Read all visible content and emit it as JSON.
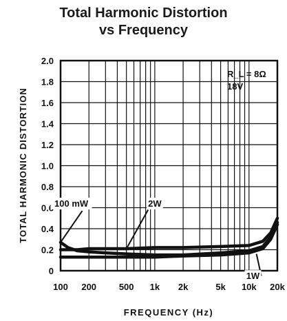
{
  "chart_data": {
    "type": "line",
    "title": [
      "Total Harmonic Distortion",
      "vs Frequency"
    ],
    "xlabel": "FREQUENCY (Hz)",
    "ylabel": "TOTAL HARMONIC DISTORTION",
    "x_scale": "log",
    "xlim": [
      100,
      20000
    ],
    "ylim": [
      0,
      2.0
    ],
    "grid": true,
    "x_ticks": [
      {
        "value": 100,
        "label": "100"
      },
      {
        "value": 200,
        "label": "200"
      },
      {
        "value": 500,
        "label": "500"
      },
      {
        "value": 1000,
        "label": "1k"
      },
      {
        "value": 2000,
        "label": "2k"
      },
      {
        "value": 5000,
        "label": "5k"
      },
      {
        "value": 10000,
        "label": "10k"
      },
      {
        "value": 20000,
        "label": "20k"
      }
    ],
    "y_ticks": [
      {
        "value": 0,
        "label": "0"
      },
      {
        "value": 0.2,
        "label": "0.2"
      },
      {
        "value": 0.4,
        "label": "0.4"
      },
      {
        "value": 0.6,
        "label": "0.6"
      },
      {
        "value": 0.8,
        "label": "0.8"
      },
      {
        "value": 1.0,
        "label": "1.0"
      },
      {
        "value": 1.2,
        "label": "1.2"
      },
      {
        "value": 1.4,
        "label": "1.4"
      },
      {
        "value": 1.6,
        "label": "1.6"
      },
      {
        "value": 1.8,
        "label": "1.8"
      },
      {
        "value": 2.0,
        "label": "2.0"
      }
    ],
    "conditions": [
      "R_L = 8Ω",
      "18V"
    ],
    "series": [
      {
        "name": "100 mW",
        "x": [
          100,
          120,
          150,
          200,
          300,
          500,
          1000,
          2000,
          5000,
          10000,
          14000,
          17000,
          20000
        ],
        "y": [
          0.27,
          0.22,
          0.19,
          0.18,
          0.17,
          0.16,
          0.15,
          0.15,
          0.17,
          0.19,
          0.23,
          0.32,
          0.46
        ]
      },
      {
        "name": "2W",
        "x": [
          100,
          150,
          200,
          500,
          1000,
          2000,
          5000,
          10000,
          14000,
          17000,
          20000
        ],
        "y": [
          0.2,
          0.2,
          0.21,
          0.21,
          0.22,
          0.22,
          0.23,
          0.24,
          0.28,
          0.36,
          0.5
        ]
      },
      {
        "name": "1W",
        "x": [
          100,
          200,
          500,
          1000,
          2000,
          5000,
          10000,
          14000,
          17000,
          20000
        ],
        "y": [
          0.13,
          0.13,
          0.13,
          0.13,
          0.14,
          0.15,
          0.17,
          0.21,
          0.3,
          0.44
        ]
      }
    ],
    "annotations": [
      {
        "label": "100 mW",
        "x": 130,
        "y": 0.61
      },
      {
        "label": "2W",
        "x": 1000,
        "y": 0.61
      },
      {
        "label": "1W",
        "x": 11000,
        "y": -0.08
      }
    ]
  }
}
